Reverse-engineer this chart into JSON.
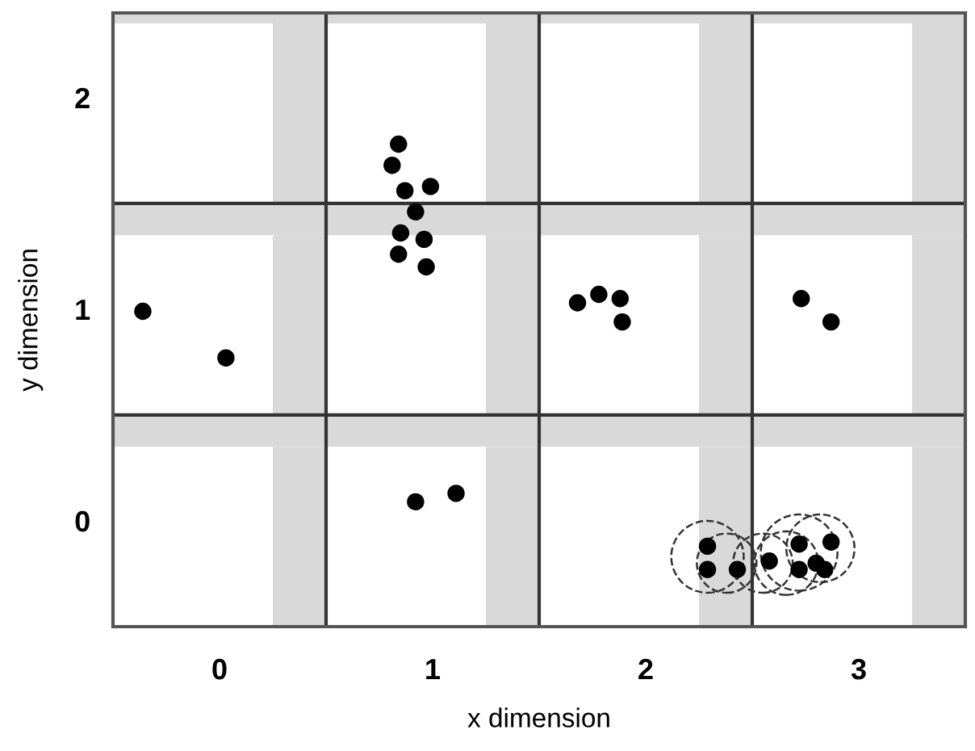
{
  "chart_data": {
    "type": "scatter",
    "xlabel": "x dimension",
    "ylabel": "y dimension",
    "x": [
      -0.36,
      0.03,
      0.84,
      0.81,
      0.87,
      0.99,
      0.92,
      0.85,
      0.96,
      0.84,
      0.97,
      1.68,
      1.78,
      1.88,
      1.89,
      2.73,
      2.87,
      0.92,
      1.11,
      2.29,
      2.29,
      2.43,
      2.58,
      2.72,
      2.72,
      2.8,
      2.87,
      2.84
    ],
    "values": [
      0.99,
      0.77,
      1.78,
      1.68,
      1.56,
      1.58,
      1.46,
      1.36,
      1.33,
      1.26,
      1.2,
      1.03,
      1.07,
      1.05,
      0.94,
      1.05,
      0.94,
      0.09,
      0.13,
      -0.12,
      -0.23,
      -0.23,
      -0.19,
      -0.11,
      -0.23,
      -0.2,
      -0.1,
      -0.23
    ],
    "color": "#000000",
    "marker": "circle",
    "xlim": [
      -0.5,
      3.5
    ],
    "ylim": [
      -0.5,
      2.4
    ],
    "xticks": [
      0,
      1,
      2,
      3
    ],
    "yticks": [
      0,
      1,
      2
    ],
    "grid": false,
    "ref_lines": [
      {
        "axis": "x",
        "value": 0.5,
        "color": "#333333"
      },
      {
        "axis": "x",
        "value": 1.5,
        "color": "#333333"
      },
      {
        "axis": "x",
        "value": 2.5,
        "color": "#333333"
      },
      {
        "axis": "y",
        "value": 0.5,
        "color": "#333333"
      },
      {
        "axis": "y",
        "value": 1.5,
        "color": "#333333"
      }
    ]
  }
}
